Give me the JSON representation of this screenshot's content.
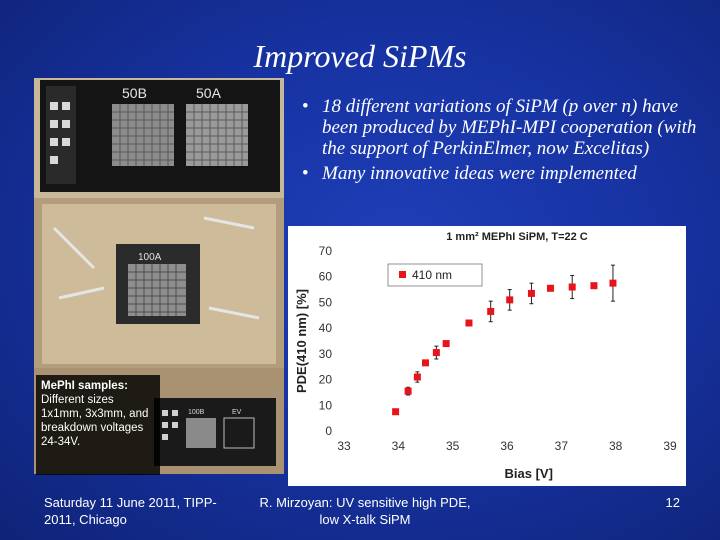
{
  "slide": {
    "title": "Improved SiPMs",
    "bullets": [
      "18 different variations of SiPM (p over n) have been produced by MEPhI-MPI cooperation (with the support of PerkinElmer, now Excelitas)",
      "Many innovative ideas were implemented"
    ],
    "photo": {
      "chip_labels": [
        "50B",
        "50A",
        "100A",
        "100B",
        "EV"
      ],
      "caption_title": "MePhI samples:",
      "caption_body": "Different sizes 1x1mm, 3x3mm, and breakdown voltages 24-34V."
    },
    "footer": {
      "date": "Saturday 11 June 2011, TIPP-2011, Chicago",
      "author": "R. Mirzoyan: UV sensitive high PDE, low X-talk SiPM",
      "page": "12"
    }
  },
  "chart_data": {
    "type": "scatter",
    "title": "1 mm² MEPhI SiPM, T=22 C",
    "xlabel": "Bias [V]",
    "ylabel": "PDE(410 nm) [%]",
    "xlim": [
      33,
      39
    ],
    "ylim": [
      0,
      70
    ],
    "xticks": [
      33,
      34,
      35,
      36,
      37,
      38,
      39
    ],
    "yticks": [
      0,
      10,
      20,
      30,
      40,
      50,
      60,
      70
    ],
    "grid": false,
    "legend_position": "top-left",
    "series": [
      {
        "name": "410 nm",
        "color": "#e8141b",
        "x": [
          33.95,
          34.18,
          34.35,
          34.5,
          34.7,
          34.88,
          35.3,
          35.7,
          36.05,
          36.45,
          36.8,
          37.2,
          37.6,
          37.95
        ],
        "y": [
          7.5,
          15.5,
          21,
          26.5,
          30.5,
          34,
          42,
          46.5,
          51,
          53.5,
          55.5,
          56,
          56.5,
          57.5
        ],
        "err": [
          0.5,
          1.5,
          2,
          1,
          2.5,
          0.5,
          0.5,
          4,
          4,
          4,
          0.5,
          4.5,
          0.5,
          7
        ]
      }
    ]
  }
}
